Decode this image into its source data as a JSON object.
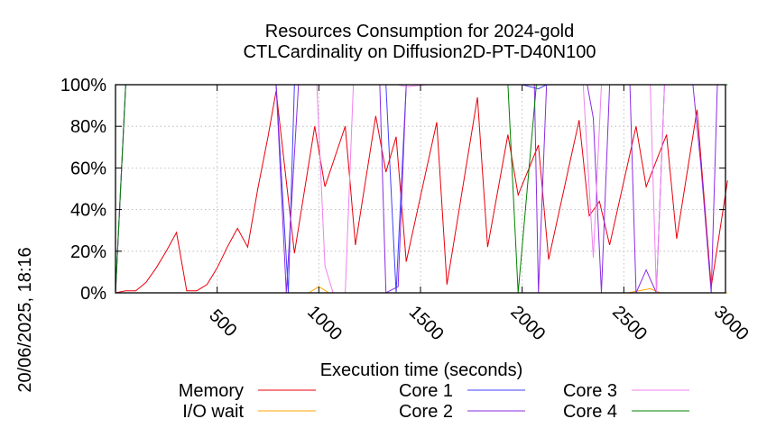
{
  "chart_data": {
    "type": "line",
    "title": "Resources Consumption for 2024-gold",
    "subtitle": "CTLCardinality on Diffusion2D-PT-D40N100",
    "xlabel": "Execution time (seconds)",
    "ylabel": "",
    "side_label": "20/06/2025, 18:16",
    "xlim": [
      0,
      3000
    ],
    "ylim": [
      0,
      100
    ],
    "x_ticks": [
      500,
      1000,
      1500,
      2000,
      2500,
      3000
    ],
    "y_ticks": [
      0,
      20,
      40,
      60,
      80,
      100
    ],
    "y_tick_labels": [
      "0%",
      "20%",
      "40%",
      "60%",
      "80%",
      "100%"
    ],
    "grid": true,
    "legend_position": "bottom",
    "series": [
      {
        "name": "Memory",
        "color": "#e8000b",
        "points": [
          [
            0,
            0
          ],
          [
            50,
            1
          ],
          [
            100,
            1
          ],
          [
            150,
            5
          ],
          [
            200,
            12
          ],
          [
            250,
            20
          ],
          [
            300,
            29
          ],
          [
            350,
            1
          ],
          [
            400,
            1
          ],
          [
            450,
            4
          ],
          [
            500,
            12
          ],
          [
            550,
            22
          ],
          [
            600,
            31
          ],
          [
            650,
            22
          ],
          [
            700,
            50
          ],
          [
            750,
            75
          ],
          [
            790,
            97
          ],
          [
            880,
            19
          ],
          [
            980,
            80
          ],
          [
            1030,
            51
          ],
          [
            1130,
            80
          ],
          [
            1180,
            23
          ],
          [
            1280,
            85
          ],
          [
            1330,
            58
          ],
          [
            1380,
            75
          ],
          [
            1430,
            15
          ],
          [
            1580,
            82
          ],
          [
            1630,
            4
          ],
          [
            1780,
            94
          ],
          [
            1830,
            22
          ],
          [
            1930,
            76
          ],
          [
            1980,
            47
          ],
          [
            2080,
            71
          ],
          [
            2130,
            16
          ],
          [
            2280,
            83
          ],
          [
            2330,
            37
          ],
          [
            2380,
            44
          ],
          [
            2430,
            23
          ],
          [
            2560,
            80
          ],
          [
            2610,
            51
          ],
          [
            2710,
            76
          ],
          [
            2760,
            26
          ],
          [
            2860,
            88
          ],
          [
            2930,
            3
          ],
          [
            3010,
            54
          ]
        ]
      },
      {
        "name": "I/O wait",
        "color": "#ffa500",
        "points": [
          [
            0,
            0
          ],
          [
            950,
            0
          ],
          [
            1000,
            3
          ],
          [
            1050,
            0
          ],
          [
            2520,
            0
          ],
          [
            2630,
            2
          ],
          [
            2680,
            0
          ],
          [
            3010,
            0
          ]
        ]
      },
      {
        "name": "Core 1",
        "color": "#4040ff",
        "points": [
          [
            0,
            0
          ],
          [
            50,
            100
          ],
          [
            790,
            100
          ],
          [
            850,
            0
          ],
          [
            880,
            100
          ],
          [
            1330,
            100
          ],
          [
            1380,
            0
          ],
          [
            1430,
            100
          ],
          [
            2000,
            100
          ],
          [
            2080,
            98
          ],
          [
            2120,
            100
          ],
          [
            3010,
            100
          ]
        ]
      },
      {
        "name": "Core 2",
        "color": "#8a2be2",
        "points": [
          [
            0,
            0
          ],
          [
            50,
            100
          ],
          [
            790,
            100
          ],
          [
            840,
            0
          ],
          [
            900,
            100
          ],
          [
            1300,
            100
          ],
          [
            1330,
            0
          ],
          [
            1390,
            3
          ],
          [
            1430,
            100
          ],
          [
            2060,
            100
          ],
          [
            2080,
            0
          ],
          [
            2120,
            100
          ],
          [
            2320,
            100
          ],
          [
            2350,
            84
          ],
          [
            2390,
            0
          ],
          [
            2430,
            100
          ],
          [
            2530,
            100
          ],
          [
            2560,
            0
          ],
          [
            2610,
            11
          ],
          [
            2660,
            0
          ],
          [
            2700,
            100
          ],
          [
            2840,
            100
          ],
          [
            2880,
            60
          ],
          [
            2930,
            0
          ],
          [
            2960,
            100
          ],
          [
            3010,
            100
          ]
        ]
      },
      {
        "name": "Core 3",
        "color": "#ee82ee",
        "points": [
          [
            0,
            0
          ],
          [
            50,
            100
          ],
          [
            990,
            100
          ],
          [
            1030,
            13
          ],
          [
            1070,
            0
          ],
          [
            1130,
            0
          ],
          [
            1170,
            100
          ],
          [
            1390,
            100
          ],
          [
            1430,
            99
          ],
          [
            1530,
            100
          ],
          [
            2300,
            100
          ],
          [
            2350,
            17
          ],
          [
            2390,
            100
          ],
          [
            2630,
            100
          ],
          [
            2660,
            0
          ],
          [
            2700,
            100
          ],
          [
            3010,
            100
          ]
        ]
      },
      {
        "name": "Core 4",
        "color": "#008000",
        "points": [
          [
            0,
            0
          ],
          [
            50,
            100
          ],
          [
            1930,
            100
          ],
          [
            1980,
            0
          ],
          [
            2070,
            100
          ],
          [
            3010,
            100
          ]
        ]
      }
    ]
  }
}
